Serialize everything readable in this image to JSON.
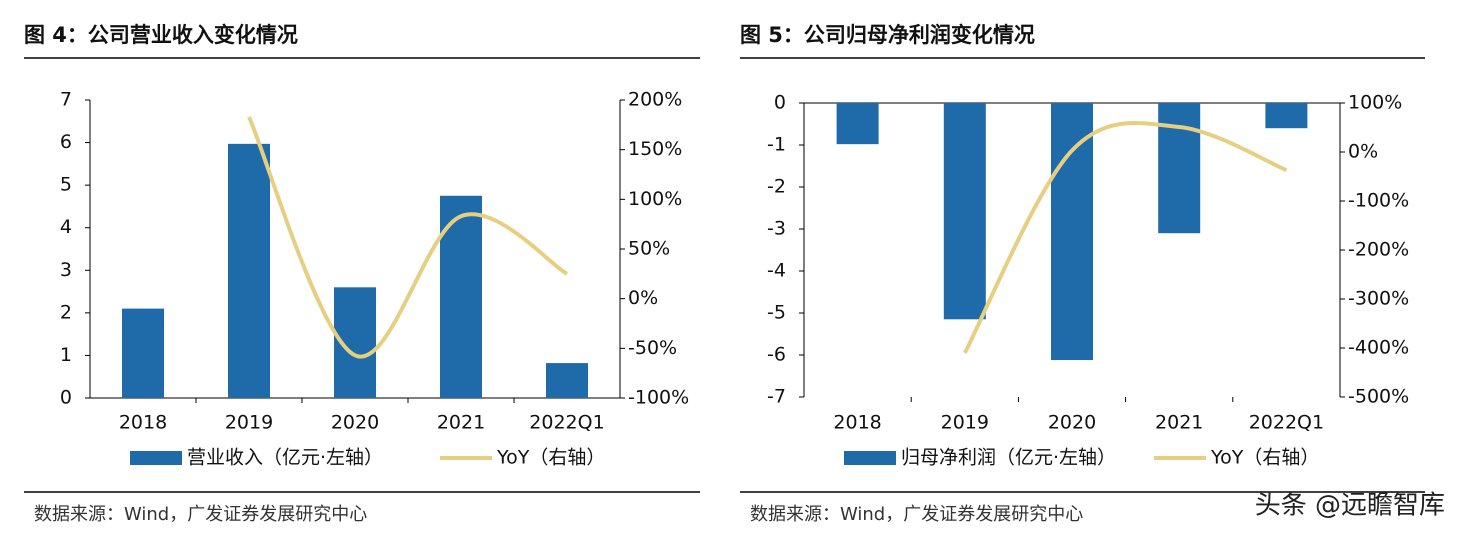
{
  "chart_data": [
    {
      "type": "bar",
      "title": "图 4：公司营业收入变化情况",
      "categories": [
        "2018",
        "2019",
        "2020",
        "2021",
        "2022Q1"
      ],
      "series": [
        {
          "name": "营业收入（亿元·左轴）",
          "color": "#1f6aa8",
          "type": "bar",
          "values": [
            2.1,
            5.97,
            2.6,
            4.75,
            0.82
          ]
        },
        {
          "name": "YoY（右轴）",
          "color": "#e6cf80",
          "type": "line",
          "axis": "y2",
          "values": [
            null,
            183,
            -57,
            83,
            25
          ]
        }
      ],
      "ylim": [
        0,
        7
      ],
      "yticks": [
        0,
        1,
        2,
        3,
        4,
        5,
        6,
        7
      ],
      "y2lim": [
        -100,
        200
      ],
      "y2ticks": [
        {
          "value": -100,
          "label": "-100%"
        },
        {
          "value": -50,
          "label": "-50%"
        },
        {
          "value": 0,
          "label": "0%"
        },
        {
          "value": 50,
          "label": "50%"
        },
        {
          "value": 100,
          "label": "100%"
        },
        {
          "value": 150,
          "label": "150%"
        },
        {
          "value": 200,
          "label": "200%"
        }
      ],
      "source": "数据来源：Wind，广发证券发展研究中心"
    },
    {
      "type": "bar",
      "title": "图 5：公司归母净利润变化情况",
      "categories": [
        "2018",
        "2019",
        "2020",
        "2021",
        "2022Q1"
      ],
      "series": [
        {
          "name": "归母净利润（亿元·左轴）",
          "color": "#1f6aa8",
          "type": "bar",
          "values": [
            -0.98,
            -5.15,
            -6.12,
            -3.1,
            -0.6
          ]
        },
        {
          "name": "YoY（右轴）",
          "color": "#e6cf80",
          "type": "line",
          "axis": "y2",
          "values": [
            null,
            -410,
            3,
            51,
            -37
          ]
        }
      ],
      "ylim": [
        -7,
        0
      ],
      "yticks": [
        -7,
        -6,
        -5,
        -4,
        -3,
        -2,
        -1,
        0
      ],
      "y2lim": [
        -500,
        100
      ],
      "y2ticks": [
        {
          "value": -500,
          "label": "-500%"
        },
        {
          "value": -400,
          "label": "-400%"
        },
        {
          "value": -300,
          "label": "-300%"
        },
        {
          "value": -200,
          "label": "-200%"
        },
        {
          "value": -100,
          "label": "-100%"
        },
        {
          "value": 0,
          "label": "0%"
        },
        {
          "value": 100,
          "label": "100%"
        }
      ],
      "source": "数据来源：Wind，广发证券发展研究中心"
    }
  ],
  "watermark": "头条 @远瞻智库"
}
